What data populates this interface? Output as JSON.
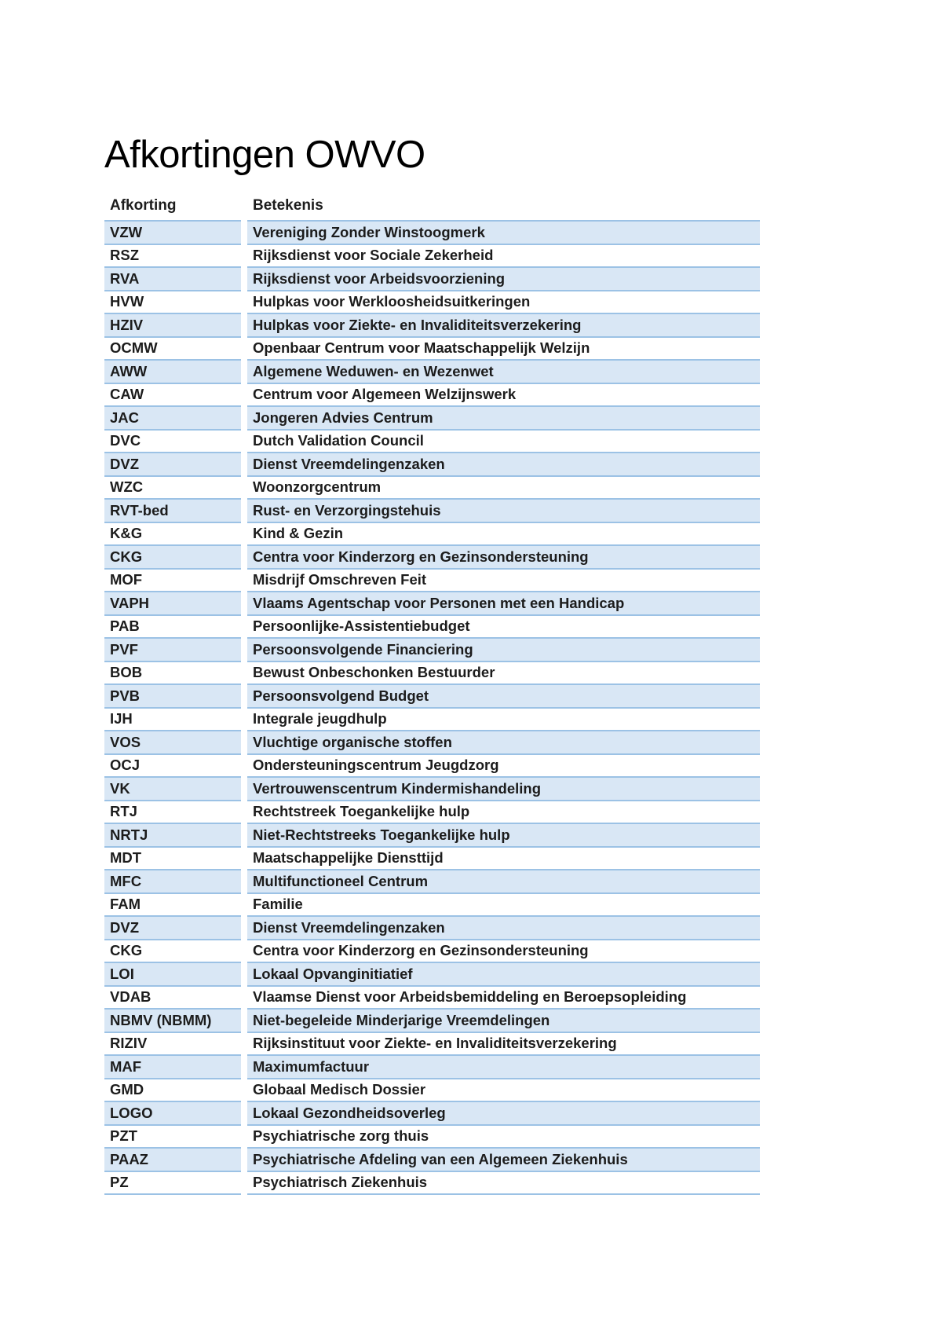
{
  "page": {
    "title": "Afkortingen OWVO"
  },
  "table": {
    "headers": [
      "Afkorting",
      "Betekenis"
    ],
    "rows": [
      [
        "VZW",
        "Vereniging Zonder Winstoogmerk"
      ],
      [
        "RSZ",
        "Rijksdienst voor Sociale Zekerheid"
      ],
      [
        "RVA",
        "Rijksdienst voor Arbeidsvoorziening"
      ],
      [
        "HVW",
        "Hulpkas voor Werkloosheidsuitkeringen"
      ],
      [
        "HZIV",
        "Hulpkas voor Ziekte- en Invaliditeitsverzekering"
      ],
      [
        "OCMW",
        "Openbaar Centrum voor Maatschappelijk Welzijn"
      ],
      [
        "AWW",
        "Algemene Weduwen- en Wezenwet"
      ],
      [
        "CAW",
        "Centrum voor Algemeen Welzijnswerk"
      ],
      [
        "JAC",
        "Jongeren Advies Centrum"
      ],
      [
        "DVC",
        "Dutch Validation Council"
      ],
      [
        "DVZ",
        "Dienst Vreemdelingenzaken"
      ],
      [
        "WZC",
        "Woonzorgcentrum"
      ],
      [
        "RVT-bed",
        "Rust- en Verzorgingstehuis"
      ],
      [
        "K&G",
        "Kind & Gezin"
      ],
      [
        "CKG",
        "Centra voor Kinderzorg en Gezinsondersteuning"
      ],
      [
        "MOF",
        "Misdrijf Omschreven Feit"
      ],
      [
        "VAPH",
        "Vlaams Agentschap voor Personen met een Handicap"
      ],
      [
        "PAB",
        "Persoonlijke-Assistentiebudget"
      ],
      [
        "PVF",
        "Persoonsvolgende Financiering"
      ],
      [
        "BOB",
        "Bewust Onbeschonken Bestuurder"
      ],
      [
        "PVB",
        "Persoonsvolgend Budget"
      ],
      [
        "IJH",
        "Integrale jeugdhulp"
      ],
      [
        "VOS",
        "Vluchtige organische stoffen"
      ],
      [
        "OCJ",
        "Ondersteuningscentrum Jeugdzorg"
      ],
      [
        "VK",
        "Vertrouwenscentrum Kindermishandeling"
      ],
      [
        "RTJ",
        "Rechtstreek Toegankelijke hulp"
      ],
      [
        "NRTJ",
        "Niet-Rechtstreeks Toegankelijke hulp"
      ],
      [
        "MDT",
        "Maatschappelijke Diensttijd"
      ],
      [
        "MFC",
        "Multifunctioneel Centrum"
      ],
      [
        "FAM",
        "Familie"
      ],
      [
        "DVZ",
        "Dienst Vreemdelingenzaken"
      ],
      [
        "CKG",
        "Centra voor Kinderzorg en Gezinsondersteuning"
      ],
      [
        "LOI",
        "Lokaal Opvanginitiatief"
      ],
      [
        "VDAB",
        "Vlaamse Dienst voor Arbeidsbemiddeling en Beroepsopleiding"
      ],
      [
        "NBMV (NBMM)",
        "Niet-begeleide Minderjarige Vreemdelingen"
      ],
      [
        "RIZIV",
        "Rijksinstituut voor Ziekte- en Invaliditeitsverzekering"
      ],
      [
        "MAF",
        "Maximumfactuur"
      ],
      [
        "GMD",
        "Globaal Medisch Dossier"
      ],
      [
        "LOGO",
        "Lokaal Gezondheidsoverleg"
      ],
      [
        "PZT",
        "Psychiatrische zorg thuis"
      ],
      [
        "PAAZ",
        "Psychiatrische Afdeling van een Algemeen Ziekenhuis"
      ],
      [
        "PZ",
        "Psychiatrisch Ziekenhuis"
      ]
    ]
  },
  "colors": {
    "row_band": "#d9e7f5",
    "row_border": "#9cc2e5",
    "text": "#1c1c1c"
  }
}
